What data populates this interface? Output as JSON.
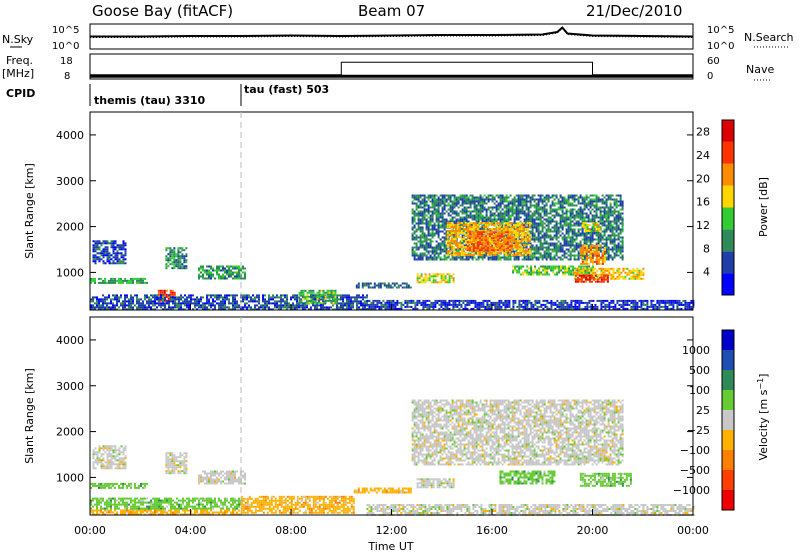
{
  "header": {
    "station": "Goose Bay (fitACF)",
    "beam": "Beam 07",
    "date": "21/Dec/2010"
  },
  "top_panels": {
    "nsky_label": "N.Sky",
    "nsearch_label": "N.Search",
    "noise_ticks": [
      "10^5",
      "10^0"
    ],
    "freq_label_1": "Freq.",
    "freq_label_2": "[MHz]",
    "freq_ticks": [
      "18",
      "8"
    ],
    "nave_label": "Nave",
    "nave_ticks": [
      "60",
      "0"
    ],
    "cpid_label": "CPID",
    "cpid_segments": [
      {
        "label": "themis (tau) 3310",
        "start_h": 0,
        "end_h": 6
      },
      {
        "label": "tau (fast) 503",
        "start_h": 6,
        "end_h": 24
      }
    ]
  },
  "colors": {
    "power_scale": [
      "#0000ff",
      "#1f3fa8",
      "#2e8b57",
      "#32cd32",
      "#ffd700",
      "#ff8c00",
      "#ff3300",
      "#dd0000"
    ],
    "velocity_scale": [
      "#0000cc",
      "#1e4fb0",
      "#2e8b57",
      "#66cc33",
      "#c8c8c8",
      "#ffb000",
      "#ff8000",
      "#ff4000",
      "#ee0000"
    ],
    "ground_scatter": "#aaaaaa"
  },
  "chart_data": [
    {
      "type": "line",
      "name": "noise",
      "x_unit": "hour UT",
      "x": [
        0,
        2,
        4,
        6,
        8,
        10,
        12,
        14,
        16,
        18,
        18.6,
        18.8,
        19,
        20,
        22,
        24
      ],
      "series": [
        {
          "values": [
            2.5,
            2.5,
            2.6,
            2.6,
            2.7,
            2.6,
            2.7,
            2.8,
            2.8,
            2.9,
            3.4,
            4.3,
            3.1,
            2.7,
            2.6,
            2.5
          ]
        }
      ],
      "ylim": [
        0,
        5
      ],
      "ytick_labels": [
        "10^0",
        "10^5"
      ]
    },
    {
      "type": "line",
      "name": "frequency-nave",
      "x": [
        0,
        6,
        10,
        10,
        20,
        20,
        24
      ],
      "series": [
        {
          "values": [
            9.1,
            9.1,
            9.1,
            9.1,
            9.1,
            9.1,
            9.1
          ]
        },
        {
          "values": [
            10,
            10,
            10,
            40,
            40,
            10,
            10
          ]
        }
      ],
      "ylim": [
        8,
        18
      ],
      "y2lim": [
        0,
        60
      ]
    },
    {
      "type": "heatmap",
      "name": "power",
      "x_unit": "hour UT",
      "xlim": [
        0,
        24
      ],
      "xticks": [
        "00:00",
        "04:00",
        "08:00",
        "12:00",
        "16:00",
        "20:00",
        "00:00"
      ],
      "ylabel": "Slant Range [km]",
      "ylim": [
        180,
        4500
      ],
      "yticks": [
        1000,
        2000,
        3000,
        4000
      ],
      "colorbar_label": "Power [dB]",
      "colorbar_ticks": [
        4,
        8,
        12,
        16,
        20,
        24,
        28
      ],
      "colorbar_range": [
        0,
        30
      ],
      "regions": [
        {
          "x0": 0.0,
          "x1": 2.3,
          "y0": 780,
          "y1": 880,
          "level": 12
        },
        {
          "x0": 0.1,
          "x1": 1.4,
          "y0": 1200,
          "y1": 1700,
          "level": 6
        },
        {
          "x0": 2.7,
          "x1": 3.4,
          "y0": 380,
          "y1": 620,
          "level": 26
        },
        {
          "x0": 3.0,
          "x1": 3.8,
          "y0": 1100,
          "y1": 1550,
          "level": 10
        },
        {
          "x0": 4.3,
          "x1": 6.2,
          "y0": 850,
          "y1": 1150,
          "level": 11
        },
        {
          "x0": 0.0,
          "x1": 11.0,
          "y0": 200,
          "y1": 520,
          "level": 6
        },
        {
          "x0": 8.3,
          "x1": 9.8,
          "y0": 330,
          "y1": 620,
          "level": 13
        },
        {
          "x0": 10.5,
          "x1": 12.8,
          "y0": 680,
          "y1": 780,
          "level": 8
        },
        {
          "x0": 13.0,
          "x1": 14.5,
          "y0": 780,
          "y1": 980,
          "level": 17
        },
        {
          "x0": 12.8,
          "x1": 21.2,
          "y0": 1300,
          "y1": 2700,
          "level": 9
        },
        {
          "x0": 14.2,
          "x1": 17.5,
          "y0": 1400,
          "y1": 2100,
          "level": 20
        },
        {
          "x0": 15.0,
          "x1": 16.8,
          "y0": 1500,
          "y1": 1900,
          "level": 24
        },
        {
          "x0": 16.8,
          "x1": 20.0,
          "y0": 950,
          "y1": 1150,
          "level": 14
        },
        {
          "x0": 19.2,
          "x1": 22.0,
          "y0": 850,
          "y1": 1100,
          "level": 19
        },
        {
          "x0": 19.3,
          "x1": 20.6,
          "y0": 800,
          "y1": 950,
          "level": 27
        },
        {
          "x0": 19.5,
          "x1": 20.5,
          "y0": 1200,
          "y1": 1600,
          "level": 21
        },
        {
          "x0": 19.6,
          "x1": 20.3,
          "y0": 1900,
          "y1": 2100,
          "level": 18
        },
        {
          "x0": 11.0,
          "x1": 24.0,
          "y0": 200,
          "y1": 400,
          "level": 5
        }
      ]
    },
    {
      "type": "heatmap",
      "name": "velocity",
      "x_unit": "hour UT",
      "xlim": [
        0,
        24
      ],
      "xticks": [
        "00:00",
        "04:00",
        "08:00",
        "12:00",
        "16:00",
        "20:00",
        "00:00"
      ],
      "xlabel": "Time UT",
      "ylabel": "Slant Range [km]",
      "ylim": [
        180,
        4500
      ],
      "yticks": [
        1000,
        2000,
        3000,
        4000
      ],
      "colorbar_label": "Velocity [m s^-1]",
      "colorbar_ticks": [
        "1000",
        "500",
        "100",
        "25",
        "−25",
        "−100",
        "−500",
        "−1000"
      ],
      "regions": [
        {
          "x0": 0.0,
          "x1": 2.3,
          "y0": 780,
          "y1": 880,
          "class": 3
        },
        {
          "x0": 0.1,
          "x1": 1.4,
          "y0": 1200,
          "y1": 1700,
          "class": 4
        },
        {
          "x0": 3.0,
          "x1": 3.8,
          "y0": 1100,
          "y1": 1550,
          "class": 4
        },
        {
          "x0": 4.3,
          "x1": 6.2,
          "y0": 850,
          "y1": 1150,
          "class": 4
        },
        {
          "x0": 0.0,
          "x1": 6.0,
          "y0": 300,
          "y1": 560,
          "class": 3
        },
        {
          "x0": 0.0,
          "x1": 6.0,
          "y0": 200,
          "y1": 300,
          "class": 5
        },
        {
          "x0": 6.0,
          "x1": 10.5,
          "y0": 220,
          "y1": 600,
          "class": 5
        },
        {
          "x0": 10.5,
          "x1": 12.8,
          "y0": 680,
          "y1": 780,
          "class": 5
        },
        {
          "x0": 13.0,
          "x1": 14.5,
          "y0": 780,
          "y1": 980,
          "class": 4
        },
        {
          "x0": 12.8,
          "x1": 21.2,
          "y0": 1300,
          "y1": 2700,
          "class": 4
        },
        {
          "x0": 16.3,
          "x1": 18.5,
          "y0": 850,
          "y1": 1150,
          "class": 3
        },
        {
          "x0": 19.5,
          "x1": 21.5,
          "y0": 800,
          "y1": 1100,
          "class": 3
        },
        {
          "x0": 11.0,
          "x1": 24.0,
          "y0": 200,
          "y1": 420,
          "class": 4
        }
      ]
    }
  ]
}
